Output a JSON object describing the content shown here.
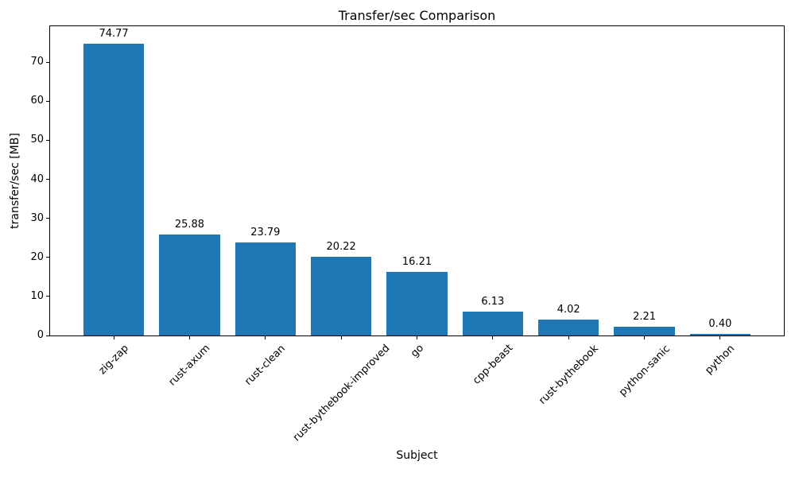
{
  "chart_data": {
    "type": "bar",
    "title": "Transfer/sec Comparison",
    "xlabel": "Subject",
    "ylabel": "transfer/sec [MB]",
    "categories": [
      "zig-zap",
      "rust-axum",
      "rust-clean",
      "rust-bythebook-improved",
      "go",
      "cpp-beast",
      "rust-bythebook",
      "python-sanic",
      "python"
    ],
    "values": [
      74.77,
      25.88,
      23.79,
      20.22,
      16.21,
      6.13,
      4.02,
      2.21,
      0.4
    ],
    "bar_labels": [
      "74.77",
      "25.88",
      "23.79",
      "20.22",
      "16.21",
      "6.13",
      "4.02",
      "2.21",
      "0.40"
    ],
    "yticks": [
      0,
      10,
      20,
      30,
      40,
      50,
      60,
      70
    ],
    "ylim": [
      0,
      79.2
    ],
    "bar_color": "#1f77b4",
    "bar_width_fraction": 0.8,
    "grid": false,
    "legend_position": "none",
    "x_tick_label_rotation_deg": 45
  }
}
